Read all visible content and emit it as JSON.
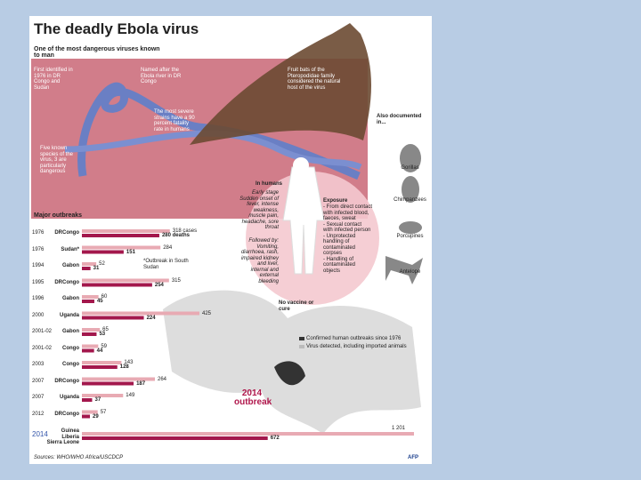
{
  "title": "The deadly Ebola virus",
  "subtitle": "One of the most dangerous viruses known to man",
  "annotations": [
    "First identified in 1976 in DR Congo and Sudan",
    "Named after the Ebola river in DR Congo",
    "The most severe strains have a 90 percent fatality rate in humans",
    "Five known species of the virus, 3 are particularly dangerous",
    "Fruit bats of the Pteropodidae family considered the natural host of the virus"
  ],
  "also_documented": {
    "heading": "Also documented in...",
    "animals": [
      "Gorillas",
      "Chimpanzees",
      "Porcupines",
      "Antelope"
    ]
  },
  "humans": {
    "heading": "In humans",
    "early": "Early stage Sudden onset of fever, intense weakness, muscle pain, headache, sore throat",
    "followed": "Followed by: Vomiting, diarrhoea, rash, impaired kidney and liver, internal and external bleeding",
    "exposure_heading": "Exposure",
    "exposure": "- From direct contact with infected blood, faeces, sweat\n- Sexual contact with infected person\n- Unprotected handling of contaminated corpses\n- Handling of contaminated objects",
    "no_vaccine": "No vaccine or cure"
  },
  "map": {
    "legend": [
      "Confirmed human outbreaks since 1976",
      "Virus detected, including imported animals"
    ],
    "label": "2014 outbreak"
  },
  "chart_data": {
    "type": "bar",
    "title": "Major outbreaks",
    "years": [
      "1976",
      "1976",
      "1994",
      "1995",
      "1996",
      "2000",
      "2001-02",
      "2001-02",
      "2003",
      "2007",
      "2007",
      "2012",
      "2014"
    ],
    "categories": [
      "DRCongo",
      "Sudan*",
      "Gabon",
      "DRCongo",
      "Gabon",
      "Uganda",
      "Gabon",
      "Congo",
      "Congo",
      "DRCongo",
      "Uganda",
      "DRCongo",
      "Guinea\nLiberia\nSierra Leone"
    ],
    "series": [
      {
        "name": "cases",
        "color": "#e8aab3",
        "values": [
          318,
          284,
          52,
          315,
          60,
          425,
          65,
          59,
          143,
          264,
          149,
          57,
          1201
        ],
        "value_labels": [
          "318 cases",
          "284",
          "52",
          "315",
          "60",
          "425",
          "65",
          "59",
          "143",
          "264",
          "149",
          "57",
          "1 201"
        ]
      },
      {
        "name": "deaths",
        "color": "#a3174c",
        "values": [
          280,
          151,
          31,
          254,
          45,
          224,
          53,
          44,
          128,
          187,
          37,
          29,
          672
        ],
        "value_labels": [
          "280 deaths",
          "151",
          "31",
          "254",
          "45",
          "224",
          "53",
          "44",
          "128",
          "187",
          "37",
          "29",
          "672"
        ]
      }
    ],
    "note": "*Outbreak in South Sudan"
  },
  "source": "Sources: WHO/WHO Africa/USCDCP",
  "credit": "AFP"
}
